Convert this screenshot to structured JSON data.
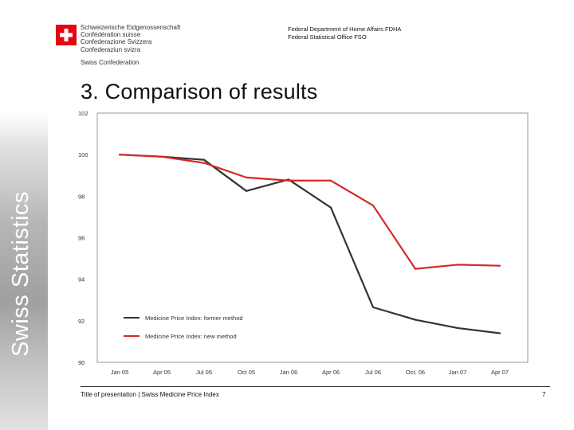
{
  "header": {
    "confederation_lines": [
      "Schweizerische Eidgenossenschaft",
      "Confédération suisse",
      "Confederazione Svizzera",
      "Confederaziun svizra"
    ],
    "confederation_short": "Swiss Confederation",
    "department": "Federal Department of Home Affairs FDHA",
    "office": "Federal Statistical Office FSO"
  },
  "slide": {
    "title": "3. Comparison of results"
  },
  "sidebar": {
    "text": "Swiss Statistics"
  },
  "footer": {
    "text": "Title of presentation | Swiss Medicine Price Index",
    "page": "7"
  },
  "chart_data": {
    "type": "line",
    "categories": [
      "Jan 05",
      "Apr 05",
      "Jul 05",
      "Oct 05",
      "Jan 06",
      "Apr 06",
      "Jul 06",
      "Oct. 06",
      "Jan 07",
      "Apr 07"
    ],
    "ylim": [
      90,
      102
    ],
    "yticks": [
      "102",
      "100",
      "98",
      "96",
      "94",
      "92",
      "90"
    ],
    "series": [
      {
        "name": "Medicine Price Index: former method",
        "color": "#333333",
        "values": [
          100,
          99.9,
          99.75,
          98.25,
          98.8,
          97.45,
          92.65,
          92.05,
          91.65,
          91.4
        ]
      },
      {
        "name": "Medicine Price Index: new method",
        "color": "#d62828",
        "values": [
          100,
          99.9,
          99.6,
          98.9,
          98.75,
          98.75,
          97.55,
          94.5,
          94.7,
          94.65
        ]
      }
    ],
    "legend": "bottom-left",
    "grid": false
  }
}
